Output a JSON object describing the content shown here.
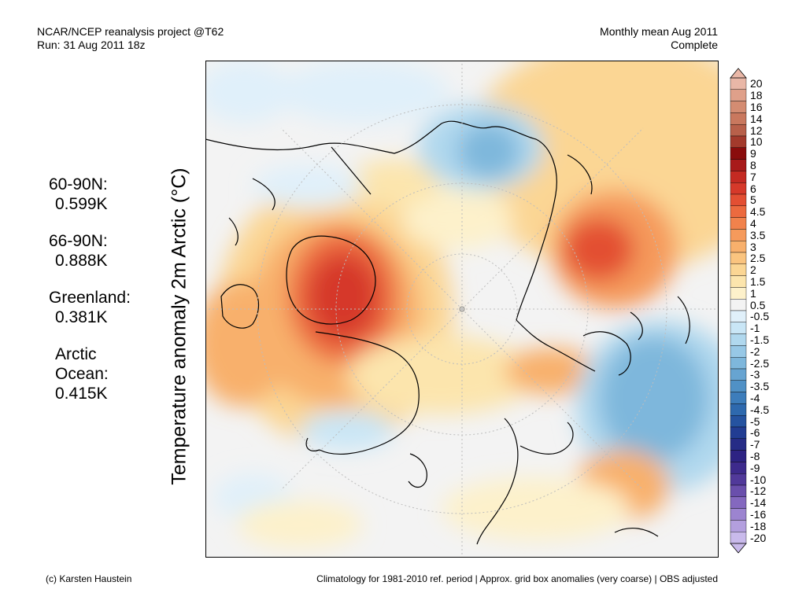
{
  "header": {
    "left_line1": "NCAR/NCEP reanalysis project @T62",
    "left_line2": "Run: 31 Aug 2011 18z",
    "right_line1": "Monthly mean Aug 2011",
    "right_line2": "Complete"
  },
  "y_title": "Temperature anomaly 2m Arctic (°C)",
  "stats": [
    {
      "name": "60-90N:",
      "value": "0.599K"
    },
    {
      "name": "66-90N:",
      "value": "0.888K"
    },
    {
      "name": "Greenland:",
      "value": "0.381K"
    },
    {
      "name1": "Arctic",
      "name2": "Ocean:",
      "value": "0.415K"
    }
  ],
  "footer": {
    "credit": "(c) Karsten Haustein",
    "note": "Climatology for 1981-2010 ref. period | Approx. grid box anomalies (very coarse) | OBS adjusted"
  },
  "colorbar": {
    "labels": [
      "20",
      "18",
      "16",
      "14",
      "12",
      "10",
      "9",
      "8",
      "7",
      "6",
      "5",
      "4.5",
      "4",
      "3.5",
      "3",
      "2.5",
      "2",
      "1.5",
      "1",
      "0.5",
      "-0.5",
      "-1",
      "-1.5",
      "-2",
      "-2.5",
      "-3",
      "-3.5",
      "-4",
      "-4.5",
      "-5",
      "-6",
      "-7",
      "-8",
      "-9",
      "-10",
      "-12",
      "-14",
      "-16",
      "-18",
      "-20"
    ],
    "colors": [
      "#e9b7a7",
      "#dfa08a",
      "#d48c72",
      "#c9785e",
      "#b8604a",
      "#a33a2c",
      "#8a0c0c",
      "#a81a1a",
      "#c42a22",
      "#d6392a",
      "#e34f33",
      "#ec6a3f",
      "#f1824c",
      "#f59a5c",
      "#f8b06c",
      "#fac47f",
      "#fbd694",
      "#fce5ad",
      "#fdf1cb",
      "#f3f3f3",
      "#e0f0fa",
      "#c9e6f6",
      "#b0d8ee",
      "#97c8e6",
      "#7eb7dc",
      "#67a4d1",
      "#5091c6",
      "#3d7dbb",
      "#2e69ae",
      "#2553a0",
      "#223d93",
      "#262c86",
      "#2d2383",
      "#3d2a8c",
      "#51399a",
      "#6a4fac",
      "#8468bf",
      "#9c84d0",
      "#b39fde",
      "#c9baeb"
    ]
  }
}
